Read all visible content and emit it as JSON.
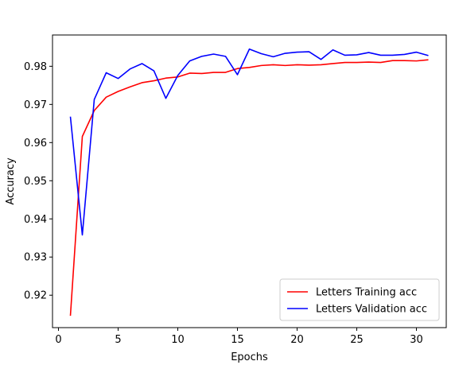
{
  "chart_data": {
    "type": "line",
    "title": "",
    "xlabel": "Epochs",
    "ylabel": "Accuracy",
    "xlim": [
      -0.5,
      32.5
    ],
    "ylim": [
      0.9115,
      0.9882
    ],
    "x_ticks": [
      0,
      5,
      10,
      15,
      20,
      25,
      30
    ],
    "y_ticks": [
      0.92,
      0.93,
      0.94,
      0.95,
      0.96,
      0.97,
      0.98
    ],
    "grid": false,
    "legend_position": "lower-right",
    "x": [
      1,
      2,
      3,
      4,
      5,
      6,
      7,
      8,
      9,
      10,
      11,
      12,
      13,
      14,
      15,
      16,
      17,
      18,
      19,
      20,
      21,
      22,
      23,
      24,
      25,
      26,
      27,
      28,
      29,
      30,
      31
    ],
    "series": [
      {
        "name": "Letters Training acc",
        "color": "#ff0000",
        "values": [
          0.9146,
          0.9616,
          0.9684,
          0.9719,
          0.9734,
          0.9746,
          0.9757,
          0.9762,
          0.9769,
          0.9772,
          0.9782,
          0.9781,
          0.9784,
          0.9784,
          0.9794,
          0.9797,
          0.9802,
          0.9804,
          0.9802,
          0.9804,
          0.9803,
          0.9804,
          0.9807,
          0.981,
          0.981,
          0.9811,
          0.981,
          0.9815,
          0.9815,
          0.9814,
          0.9817
        ]
      },
      {
        "name": "Letters Validation acc",
        "color": "#0000ff",
        "values": [
          0.9668,
          0.9358,
          0.9713,
          0.9783,
          0.9768,
          0.9793,
          0.9807,
          0.9788,
          0.9716,
          0.9776,
          0.9814,
          0.9826,
          0.9832,
          0.9826,
          0.9778,
          0.9845,
          0.9833,
          0.9825,
          0.9834,
          0.9837,
          0.9838,
          0.9818,
          0.9843,
          0.9829,
          0.983,
          0.9836,
          0.9829,
          0.9829,
          0.9831,
          0.9837,
          0.9828
        ]
      }
    ]
  }
}
